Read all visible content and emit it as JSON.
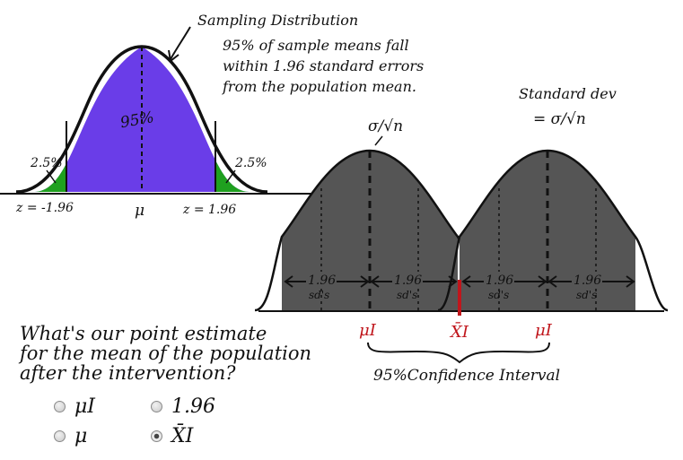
{
  "sampling": {
    "title": "Sampling Distribution",
    "desc": [
      "95% of sample means fall",
      "within 1.96 standard errors",
      "from the population mean."
    ],
    "center_pct": "95%",
    "left_tail": "2.5%",
    "right_tail": "2.5%",
    "z_left": "z = -1.96",
    "mu": "μ",
    "z_right": "z = 1.96"
  },
  "ci": {
    "se_label": "σ/√n",
    "sd_title": "Standard dev",
    "sd_eq": "= σ/√n",
    "interval_label": "1.96",
    "interval_unit": "sd's",
    "mu_i": "μI",
    "xbar_i": "X̄I",
    "ci_label": "95%Confidence Interval"
  },
  "question": {
    "lines": [
      "What's our point estimate",
      "for the mean of the population",
      "after the intervention?"
    ],
    "options": [
      {
        "label": "μI",
        "selected": false
      },
      {
        "label": "1.96",
        "selected": false
      },
      {
        "label": "μ",
        "selected": false
      },
      {
        "label": "X̄I",
        "selected": true
      }
    ]
  },
  "colors": {
    "center_fill": "#6a3de8",
    "tail_fill": "#1fa01f",
    "ci_fill": "#555555",
    "accent_red": "#c0161c"
  }
}
